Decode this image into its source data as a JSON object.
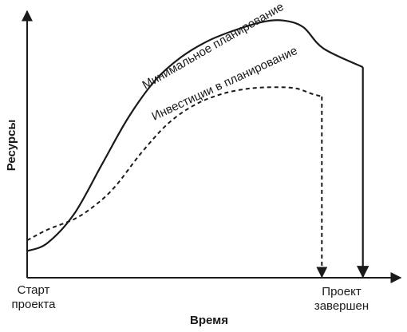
{
  "chart_data": {
    "type": "line",
    "title": "",
    "xlabel": "Время",
    "ylabel": "Ресурсы",
    "x_ticks": [
      {
        "x": 0,
        "lines": [
          "Старт",
          "проекта"
        ]
      },
      {
        "x": 87.5,
        "lines": [
          "Проект",
          "завершен"
        ]
      }
    ],
    "xlim": [
      0,
      100
    ],
    "ylim": [
      0,
      100
    ],
    "grid": false,
    "legend": "none",
    "series": [
      {
        "name": "Минимальное планирование",
        "style": "solid",
        "color": "#1a1a1a",
        "points": [
          [
            0,
            10
          ],
          [
            6,
            13
          ],
          [
            14,
            24
          ],
          [
            22,
            42
          ],
          [
            30,
            60
          ],
          [
            38,
            74
          ],
          [
            46,
            83
          ],
          [
            54,
            89
          ],
          [
            62,
            93
          ],
          [
            70,
            96
          ],
          [
            76,
            96.5
          ],
          [
            82,
            94
          ],
          [
            88,
            86
          ],
          [
            99.7,
            79
          ]
        ],
        "drop_to_axis_at_x": 99.7
      },
      {
        "name": "Инвестиции в планирование",
        "style": "dashed",
        "color": "#1a1a1a",
        "points": [
          [
            0,
            14
          ],
          [
            6,
            18
          ],
          [
            14,
            22
          ],
          [
            20,
            27
          ],
          [
            26,
            34
          ],
          [
            34,
            47
          ],
          [
            42,
            58
          ],
          [
            50,
            65
          ],
          [
            58,
            69
          ],
          [
            66,
            71
          ],
          [
            74,
            71.5
          ],
          [
            80,
            71
          ],
          [
            84.5,
            69
          ],
          [
            87.5,
            68
          ]
        ],
        "drop_to_axis_at_x": 87.5
      }
    ]
  }
}
